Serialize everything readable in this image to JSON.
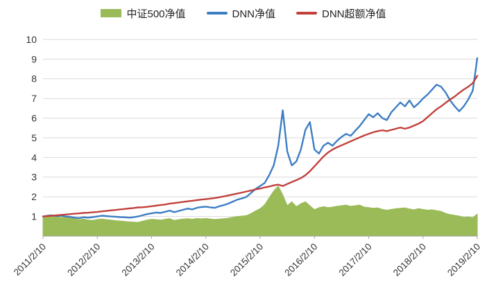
{
  "chart_data": {
    "type": "line",
    "title": "",
    "xlabel": "",
    "ylabel": "",
    "ylim": [
      0,
      10
    ],
    "y_tick_labels": [
      "1",
      "2",
      "3",
      "4",
      "5",
      "6",
      "7",
      "8",
      "9",
      "10"
    ],
    "y_tick_values": [
      1,
      2,
      3,
      4,
      5,
      6,
      7,
      8,
      9,
      10
    ],
    "grid": true,
    "legend_position": "top",
    "x_tick_labels": [
      "2011/2/10",
      "2012/2/10",
      "2013/2/10",
      "2014/2/10",
      "2015/2/10",
      "2016/2/10",
      "2017/2/10",
      "2018/2/10",
      "2019/2/10"
    ],
    "x_tick_indices": [
      0,
      12,
      24,
      36,
      48,
      60,
      72,
      84,
      96
    ],
    "axis_color": "#a6a6a6",
    "grid_color": "#d9d9d9",
    "text_color": "#333333",
    "series": [
      {
        "name": "中证500净值",
        "type": "area",
        "color": "#9bbb59",
        "values": [
          1.0,
          1.03,
          1.0,
          0.97,
          0.95,
          0.96,
          0.92,
          0.88,
          0.84,
          0.87,
          0.82,
          0.8,
          0.85,
          0.87,
          0.84,
          0.82,
          0.79,
          0.77,
          0.75,
          0.73,
          0.72,
          0.7,
          0.76,
          0.82,
          0.86,
          0.84,
          0.82,
          0.86,
          0.89,
          0.8,
          0.84,
          0.87,
          0.89,
          0.86,
          0.9,
          0.88,
          0.9,
          0.87,
          0.85,
          0.87,
          0.89,
          0.92,
          0.96,
          1.0,
          1.02,
          1.05,
          1.15,
          1.28,
          1.4,
          1.6,
          1.95,
          2.3,
          2.55,
          2.1,
          1.55,
          1.75,
          1.5,
          1.65,
          1.75,
          1.55,
          1.35,
          1.45,
          1.5,
          1.45,
          1.48,
          1.52,
          1.55,
          1.58,
          1.52,
          1.55,
          1.58,
          1.48,
          1.45,
          1.42,
          1.44,
          1.36,
          1.32,
          1.36,
          1.4,
          1.42,
          1.44,
          1.38,
          1.34,
          1.4,
          1.36,
          1.32,
          1.34,
          1.3,
          1.26,
          1.16,
          1.1,
          1.06,
          1.02,
          0.96,
          0.98,
          0.94,
          1.12
        ]
      },
      {
        "name": "DNN净值",
        "type": "line",
        "color": "#3c7dc4",
        "values": [
          1.0,
          1.04,
          1.06,
          1.02,
          1.04,
          1.0,
          0.98,
          0.94,
          0.92,
          0.96,
          0.94,
          0.97,
          1.0,
          1.04,
          1.02,
          1.0,
          0.99,
          0.97,
          0.96,
          0.94,
          0.96,
          1.0,
          1.06,
          1.12,
          1.16,
          1.2,
          1.18,
          1.24,
          1.3,
          1.22,
          1.28,
          1.34,
          1.4,
          1.36,
          1.44,
          1.48,
          1.5,
          1.46,
          1.44,
          1.52,
          1.58,
          1.66,
          1.76,
          1.86,
          1.92,
          2.0,
          2.2,
          2.4,
          2.55,
          2.7,
          3.1,
          3.6,
          4.6,
          6.4,
          4.3,
          3.6,
          3.8,
          4.4,
          5.4,
          5.8,
          4.4,
          4.2,
          4.6,
          4.75,
          4.6,
          4.85,
          5.05,
          5.2,
          5.1,
          5.35,
          5.6,
          5.9,
          6.2,
          6.05,
          6.25,
          6.0,
          5.9,
          6.3,
          6.55,
          6.8,
          6.6,
          6.9,
          6.55,
          6.75,
          7.0,
          7.2,
          7.45,
          7.7,
          7.6,
          7.3,
          6.9,
          6.6,
          6.35,
          6.6,
          6.95,
          7.4,
          9.05
        ]
      },
      {
        "name": "DNN超额净值",
        "type": "line",
        "color": "#c1403c",
        "values": [
          1.0,
          1.02,
          1.04,
          1.06,
          1.08,
          1.1,
          1.12,
          1.14,
          1.16,
          1.18,
          1.19,
          1.21,
          1.23,
          1.26,
          1.28,
          1.31,
          1.33,
          1.36,
          1.38,
          1.41,
          1.43,
          1.46,
          1.47,
          1.49,
          1.52,
          1.55,
          1.58,
          1.61,
          1.65,
          1.68,
          1.71,
          1.74,
          1.77,
          1.8,
          1.83,
          1.86,
          1.88,
          1.91,
          1.94,
          1.98,
          2.02,
          2.07,
          2.12,
          2.17,
          2.22,
          2.27,
          2.32,
          2.38,
          2.42,
          2.48,
          2.52,
          2.58,
          2.62,
          2.55,
          2.65,
          2.75,
          2.85,
          2.95,
          3.1,
          3.3,
          3.55,
          3.8,
          4.05,
          4.25,
          4.4,
          4.52,
          4.62,
          4.72,
          4.82,
          4.92,
          5.02,
          5.12,
          5.2,
          5.28,
          5.34,
          5.38,
          5.34,
          5.4,
          5.46,
          5.52,
          5.46,
          5.52,
          5.62,
          5.72,
          5.85,
          6.05,
          6.25,
          6.45,
          6.6,
          6.78,
          6.95,
          7.1,
          7.28,
          7.45,
          7.6,
          7.78,
          8.15
        ]
      }
    ]
  }
}
